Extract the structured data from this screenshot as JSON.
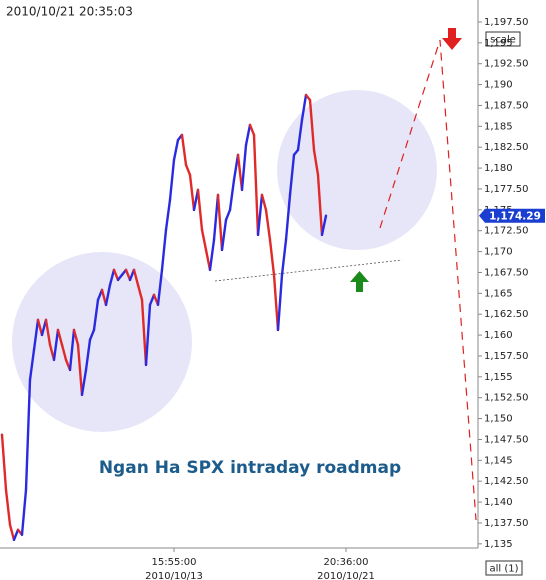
{
  "chart_data": {
    "type": "line",
    "timestamp": "2010/10/21 20:35:03",
    "annotation": "Ngan Ha SPX intraday roadmap",
    "scale_button": "scale",
    "all_button": "all (1)",
    "up_color": "#2a2ae0",
    "down_color": "#e02a2a",
    "current_price": {
      "value": 1174.29,
      "label": "1,174.29"
    },
    "categories": [
      null,
      null,
      null,
      null,
      null,
      null,
      null,
      null,
      null,
      null,
      null,
      null,
      null,
      null,
      null,
      null,
      null,
      null,
      null,
      null,
      null,
      null,
      null,
      null,
      null,
      null,
      null,
      null,
      null,
      null,
      null,
      null,
      null,
      null,
      null,
      null,
      null,
      null,
      null,
      null,
      null,
      null,
      null,
      null,
      null,
      null,
      null,
      null,
      null,
      null,
      null,
      null,
      null,
      null,
      null,
      null,
      null,
      null,
      null,
      null,
      null,
      null,
      null,
      null,
      null,
      null,
      null,
      null,
      null,
      null,
      null,
      null,
      null,
      null,
      null,
      null,
      null,
      null,
      null,
      null,
      null,
      null,
      null,
      null,
      null,
      null,
      null
    ],
    "xticks": [
      {
        "value": 43,
        "label": "15:55:00",
        "date": "2010/10/13"
      },
      {
        "value": 86,
        "label": "20:36:00",
        "date": "2010/10/21"
      }
    ],
    "values": [
      1148.05,
      1141.47,
      1137.28,
      1135.48,
      1136.68,
      1136.08,
      1141.47,
      1154.64,
      1158.23,
      1161.82,
      1160.02,
      1161.82,
      1158.83,
      1157.03,
      1160.62,
      1158.83,
      1157.03,
      1155.83,
      1160.62,
      1158.83,
      1152.84,
      1155.83,
      1159.43,
      1160.62,
      1164.22,
      1165.41,
      1163.62,
      1166.01,
      1167.81,
      1166.61,
      1167.21,
      1167.81,
      1166.61,
      1167.81,
      1166.01,
      1164.22,
      1156.43,
      1163.62,
      1164.81,
      1163.62,
      1167.81,
      1172.6,
      1176.19,
      1180.98,
      1183.37,
      1183.97,
      1180.38,
      1179.18,
      1174.99,
      1177.39,
      1172.6,
      1170.2,
      1167.81,
      1171.4,
      1176.79,
      1170.2,
      1173.79,
      1174.99,
      1178.58,
      1181.58,
      1177.39,
      1182.77,
      1185.17,
      1183.97,
      1172.0,
      1176.79,
      1174.99,
      1171.4,
      1167.21,
      1160.62,
      1167.21,
      1171.4,
      1176.79,
      1181.58,
      1182.17,
      1185.77,
      1188.76,
      1188.16,
      1182.17,
      1179.18,
      1172.0,
      1174.29,
      null,
      null,
      null,
      null,
      null
    ],
    "ylim": [
      1134.5,
      1200.13
    ],
    "yticks": [
      {
        "value": 1135,
        "label": "1,135"
      },
      {
        "value": 1137.5,
        "label": "1,137.50"
      },
      {
        "value": 1140,
        "label": "1,140"
      },
      {
        "value": 1142.5,
        "label": "1,142.50"
      },
      {
        "value": 1145,
        "label": "1,145"
      },
      {
        "value": 1147.5,
        "label": "1,147.50"
      },
      {
        "value": 1150,
        "label": "1,150"
      },
      {
        "value": 1152.5,
        "label": "1,152.50"
      },
      {
        "value": 1155,
        "label": "1,155"
      },
      {
        "value": 1157.5,
        "label": "1,157.50"
      },
      {
        "value": 1160,
        "label": "1,160"
      },
      {
        "value": 1162.5,
        "label": "1,162.50"
      },
      {
        "value": 1165,
        "label": "1,165"
      },
      {
        "value": 1167.5,
        "label": "1,167.50"
      },
      {
        "value": 1170,
        "label": "1,170"
      },
      {
        "value": 1172.5,
        "label": "1,172.50"
      },
      {
        "value": 1175,
        "label": "1,175"
      },
      {
        "value": 1177.5,
        "label": "1,177.50"
      },
      {
        "value": 1180,
        "label": "1,180"
      },
      {
        "value": 1182.5,
        "label": "1,182.50"
      },
      {
        "value": 1185,
        "label": "1,185"
      },
      {
        "value": 1187.5,
        "label": "1,187.50"
      },
      {
        "value": 1190,
        "label": "1,190"
      },
      {
        "value": 1192.5,
        "label": "1,192.50"
      },
      {
        "value": 1195,
        "label": "1,195"
      },
      {
        "value": 1197.5,
        "label": "1,197.50"
      }
    ],
    "grid": false
  }
}
